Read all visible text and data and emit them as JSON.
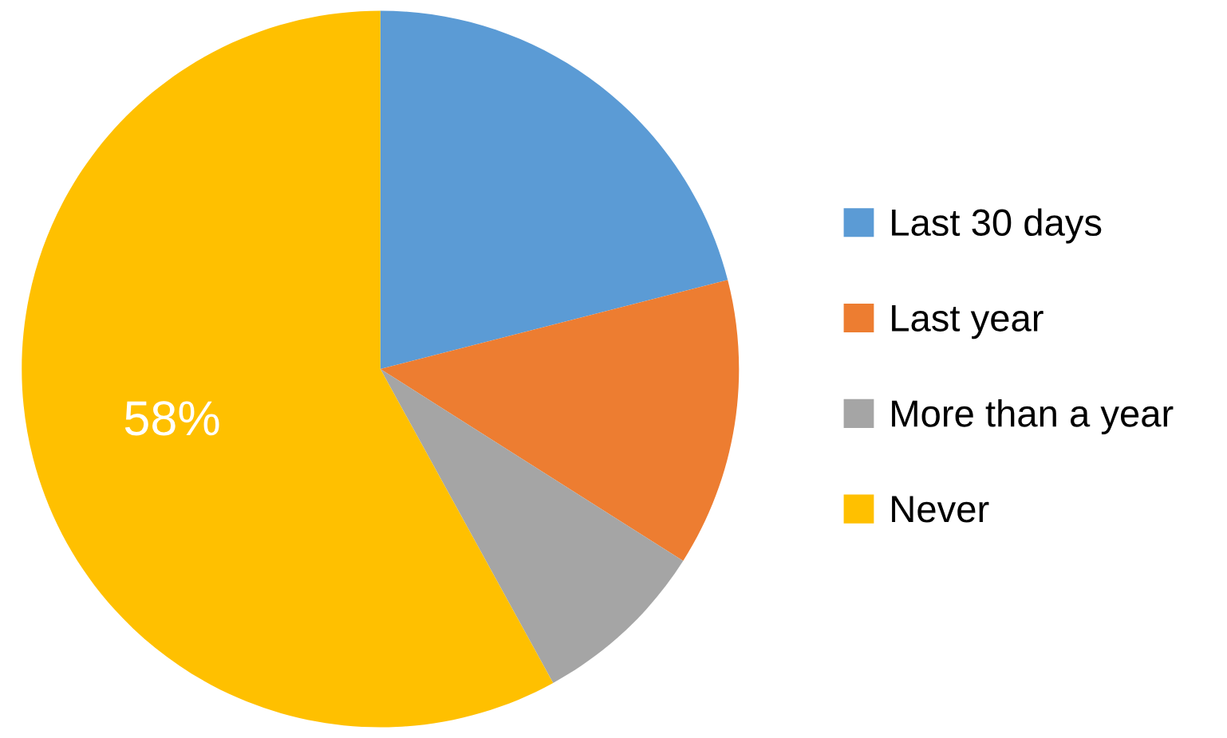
{
  "chart_data": {
    "type": "pie",
    "categories": [
      "Last 30 days",
      "Last year",
      "More than a year",
      "Never"
    ],
    "values": [
      21,
      13,
      8,
      58
    ],
    "colors": [
      "#5b9bd5",
      "#ed7d31",
      "#a5a5a5",
      "#ffc000"
    ],
    "value_labels": [
      null,
      null,
      null,
      "58%"
    ],
    "legend": "right"
  }
}
